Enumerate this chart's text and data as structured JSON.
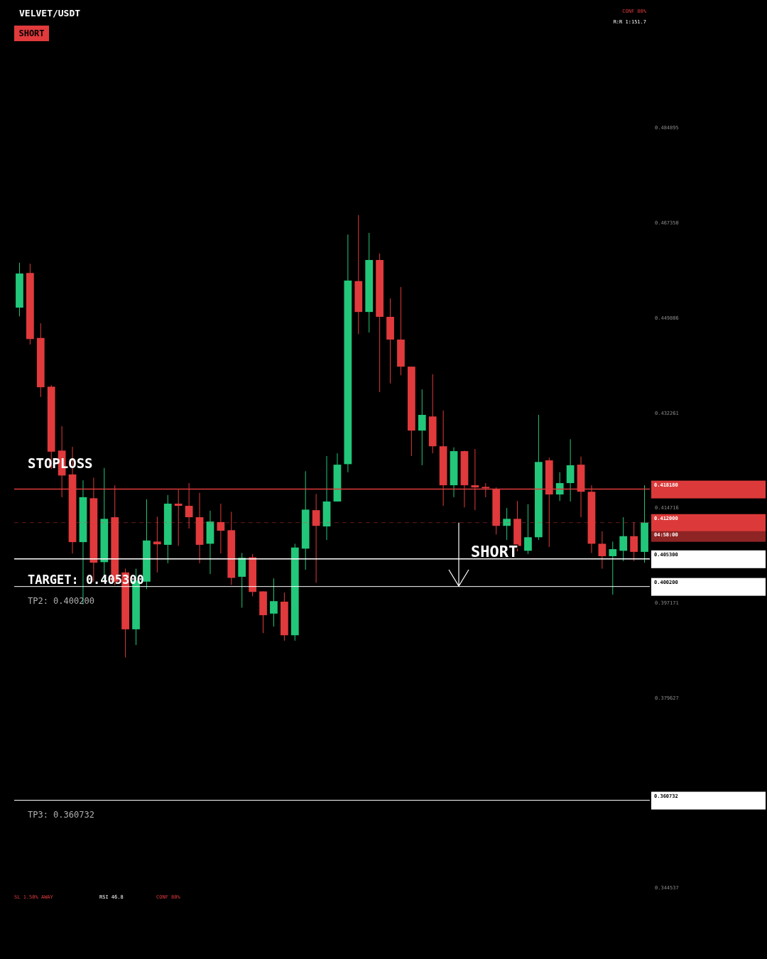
{
  "chart_data": {
    "type": "candlestick",
    "title": "VELVET/USDT",
    "categories": [
      null,
      null,
      null,
      null,
      null,
      null,
      null,
      null,
      null,
      null,
      null,
      null,
      null,
      null,
      null,
      null,
      null,
      null,
      null,
      null,
      null,
      null,
      null,
      null,
      null,
      null,
      null,
      null,
      null,
      null,
      null,
      null,
      null,
      null,
      null,
      null,
      null,
      null,
      null,
      null,
      null,
      null,
      null,
      null,
      null,
      null,
      null,
      null,
      null,
      null,
      null,
      null,
      null,
      null,
      null,
      null,
      null,
      null,
      null,
      null
    ],
    "ohlc": [
      [
        0.4517,
        0.46,
        0.4501,
        0.458
      ],
      [
        0.4581,
        0.4598,
        0.4449,
        0.4459
      ],
      [
        0.4461,
        0.4488,
        0.4352,
        0.437
      ],
      [
        0.4371,
        0.4374,
        0.4219,
        0.4251
      ],
      [
        0.4253,
        0.4298,
        0.4167,
        0.4207
      ],
      [
        0.4209,
        0.426,
        0.4063,
        0.4084
      ],
      [
        0.4084,
        0.4198,
        0.3969,
        0.4167
      ],
      [
        0.4165,
        0.4203,
        0.4011,
        0.4046
      ],
      [
        0.4047,
        0.4221,
        0.4013,
        0.4127
      ],
      [
        0.413,
        0.4189,
        0.4005,
        0.4011
      ],
      [
        0.4028,
        0.4035,
        0.3871,
        0.3923
      ],
      [
        0.3923,
        0.4035,
        0.3894,
        0.4013
      ],
      [
        0.4011,
        0.4163,
        0.3997,
        0.4087
      ],
      [
        0.4085,
        0.4131,
        0.4028,
        0.408
      ],
      [
        0.4079,
        0.4171,
        0.4045,
        0.4155
      ],
      [
        0.4155,
        0.4181,
        0.4077,
        0.4151
      ],
      [
        0.4151,
        0.4193,
        0.4109,
        0.413
      ],
      [
        0.413,
        0.4175,
        0.4045,
        0.4079
      ],
      [
        0.4081,
        0.4142,
        0.4025,
        0.4122
      ],
      [
        0.4121,
        0.4155,
        0.4063,
        0.4105
      ],
      [
        0.4106,
        0.414,
        0.4005,
        0.4018
      ],
      [
        0.402,
        0.4064,
        0.3963,
        0.4055
      ],
      [
        0.4056,
        0.4062,
        0.3984,
        0.3992
      ],
      [
        0.3993,
        0.3993,
        0.3916,
        0.3949
      ],
      [
        0.3952,
        0.4017,
        0.3928,
        0.3975
      ],
      [
        0.3974,
        0.3991,
        0.3902,
        0.3912
      ],
      [
        0.3912,
        0.4081,
        0.3902,
        0.4074
      ],
      [
        0.4072,
        0.4215,
        0.4033,
        0.4144
      ],
      [
        0.4143,
        0.4173,
        0.4009,
        0.4114
      ],
      [
        0.4113,
        0.4243,
        0.4088,
        0.4159
      ],
      [
        0.4159,
        0.4248,
        0.4159,
        0.4227
      ],
      [
        0.4228,
        0.4652,
        0.4213,
        0.4567
      ],
      [
        0.4566,
        0.4688,
        0.4468,
        0.4509
      ],
      [
        0.4509,
        0.4655,
        0.4471,
        0.4605
      ],
      [
        0.4605,
        0.4617,
        0.4361,
        0.45
      ],
      [
        0.45,
        0.4534,
        0.4377,
        0.4458
      ],
      [
        0.4458,
        0.4555,
        0.4392,
        0.4408
      ],
      [
        0.4408,
        0.4408,
        0.4243,
        0.429
      ],
      [
        0.429,
        0.4366,
        0.4226,
        0.4319
      ],
      [
        0.4316,
        0.4394,
        0.4248,
        0.4261
      ],
      [
        0.4261,
        0.4327,
        0.4151,
        0.4189
      ],
      [
        0.4189,
        0.4259,
        0.4167,
        0.4252
      ],
      [
        0.4252,
        0.4253,
        0.4148,
        0.4189
      ],
      [
        0.4189,
        0.4256,
        0.4143,
        0.4185
      ],
      [
        0.4186,
        0.4193,
        0.4167,
        0.4184
      ],
      [
        0.4182,
        0.4185,
        0.4098,
        0.4114
      ],
      [
        0.4114,
        0.4147,
        0.4088,
        0.4127
      ],
      [
        0.4127,
        0.416,
        0.4067,
        0.4077
      ],
      [
        0.4068,
        0.4154,
        0.4062,
        0.4093
      ],
      [
        0.4093,
        0.4319,
        0.4088,
        0.4232
      ],
      [
        0.4235,
        0.424,
        0.4075,
        0.4172
      ],
      [
        0.4172,
        0.4213,
        0.416,
        0.4193
      ],
      [
        0.4193,
        0.4274,
        0.4159,
        0.4226
      ],
      [
        0.4227,
        0.4242,
        0.413,
        0.4177
      ],
      [
        0.4177,
        0.4189,
        0.4064,
        0.4081
      ],
      [
        0.4081,
        0.4104,
        0.4035,
        0.4058
      ],
      [
        0.4058,
        0.4085,
        0.3987,
        0.4071
      ],
      [
        0.4068,
        0.413,
        0.4049,
        0.4095
      ],
      [
        0.4095,
        0.4121,
        0.4049,
        0.4066
      ],
      [
        0.4066,
        0.4189,
        0.4046,
        0.412
      ]
    ],
    "colors": [
      "#22c77a",
      "#e03a3c",
      "#e03a3c",
      "#e03a3c",
      "#e03a3c",
      "#e03a3c",
      "#22c77a",
      "#e03a3c",
      "#22c77a",
      "#e03a3c",
      "#e03a3c",
      "#22c77a",
      "#22c77a",
      "#e03a3c",
      "#22c77a",
      "#e03a3c",
      "#e03a3c",
      "#e03a3c",
      "#22c77a",
      "#e03a3c",
      "#e03a3c",
      "#22c77a",
      "#e03a3c",
      "#e03a3c",
      "#22c77a",
      "#e03a3c",
      "#22c77a",
      "#22c77a",
      "#e03a3c",
      "#22c77a",
      "#22c77a",
      "#22c77a",
      "#e03a3c",
      "#22c77a",
      "#e03a3c",
      "#e03a3c",
      "#e03a3c",
      "#e03a3c",
      "#22c77a",
      "#e03a3c",
      "#e03a3c",
      "#22c77a",
      "#e03a3c",
      "#e03a3c",
      "#e03a3c",
      "#e03a3c",
      "#22c77a",
      "#e03a3c",
      "#22c77a",
      "#22c77a",
      "#e03a3c",
      "#22c77a",
      "#22c77a",
      "#e03a3c",
      "#e03a3c",
      "#e03a3c",
      "#22c77a",
      "#22c77a",
      "#e03a3c",
      "#22c77a"
    ],
    "ylim": [
      0.344537,
      0.484895
    ],
    "yticks": [
      0.484895,
      {
        "value": 0.46735,
        "label": "0.467350"
      },
      0.449806,
      0.432261,
      0.414716,
      0.397171,
      0.379627,
      0.344537
    ],
    "ref_lines": [
      {
        "axis": "y",
        "value": 0.41818,
        "label": "STOPLOSS",
        "color": "#e03a3c"
      },
      {
        "axis": "y",
        "value": 0.412,
        "label": null,
        "color": "#e03a3c",
        "line_style": "dashed"
      },
      {
        "axis": "y",
        "value": 0.4053,
        "label": "TARGET: 0.405300",
        "color": "#ffffff"
      },
      {
        "axis": "y",
        "value": 0.4002,
        "label": "TP2: 0.400200",
        "color": "#ffffff"
      },
      {
        "axis": "y",
        "value": 0.360732,
        "label": "TP3: 0.360732",
        "color": "#ffffff"
      }
    ],
    "annotations": [
      "SHORT",
      "CONF 80%",
      "R:R 1:151.7",
      "SHORT",
      "04:58:00",
      "SL 1.50% AWAY",
      "RSI 46.8",
      "CONF 80%",
      "0.418180",
      "0.412000",
      "0.405300",
      "0.400200",
      "0.360732"
    ]
  }
}
